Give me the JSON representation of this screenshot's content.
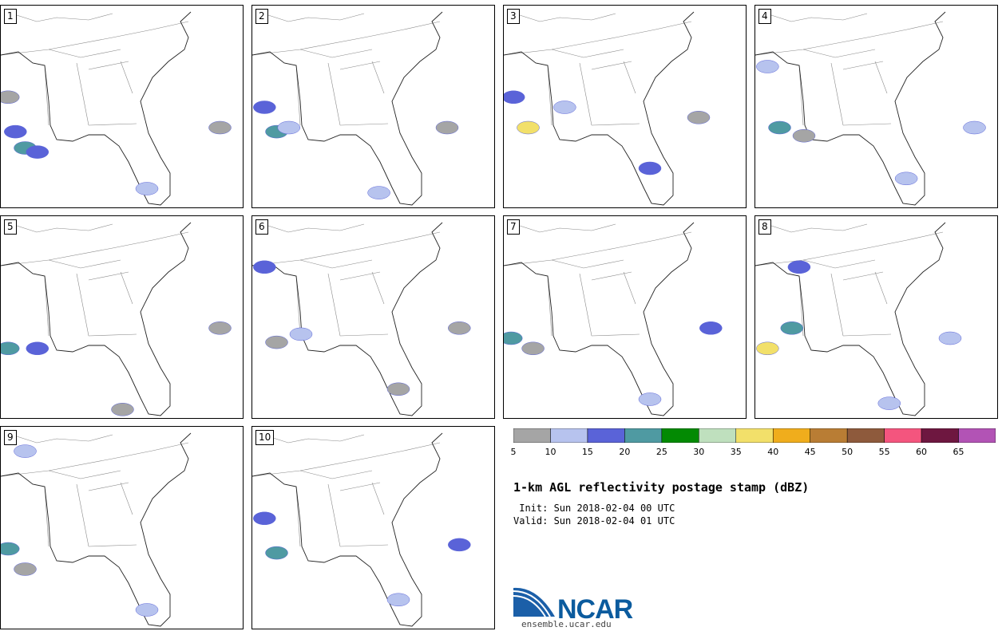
{
  "panels": [
    {
      "label": "1"
    },
    {
      "label": "2"
    },
    {
      "label": "3"
    },
    {
      "label": "4"
    },
    {
      "label": "5"
    },
    {
      "label": "6"
    },
    {
      "label": "7"
    },
    {
      "label": "8"
    },
    {
      "label": "9"
    },
    {
      "label": "10"
    }
  ],
  "colorbar": {
    "colors": [
      "#a5a5a5",
      "#b7c3ee",
      "#5a63d8",
      "#4f9aa2",
      "#038a03",
      "#bfe0be",
      "#f2e06a",
      "#f0ad1c",
      "#b97d34",
      "#8e5a3c",
      "#f4557e",
      "#6e1740",
      "#b253b5"
    ],
    "ticks": [
      "5",
      "10",
      "15",
      "20",
      "25",
      "30",
      "35",
      "40",
      "45",
      "50",
      "55",
      "60",
      "65"
    ]
  },
  "title": "1-km AGL reflectivity postage stamp (dBZ)",
  "init_line": " Init: Sun 2018-02-04 00 UTC",
  "valid_line": "Valid: Sun 2018-02-04 01 UTC",
  "logo": {
    "name": "NCAR",
    "url": "ensemble.ucar.edu"
  },
  "blobs": [
    [
      [
        0.03,
        0.45,
        "g"
      ],
      [
        0.06,
        0.62,
        "m"
      ],
      [
        0.1,
        0.7,
        "t"
      ],
      [
        0.15,
        0.72,
        "m"
      ],
      [
        0.6,
        0.9,
        "b"
      ],
      [
        0.9,
        0.6,
        "g"
      ]
    ],
    [
      [
        0.05,
        0.5,
        "m"
      ],
      [
        0.1,
        0.62,
        "t"
      ],
      [
        0.15,
        0.6,
        "b"
      ],
      [
        0.8,
        0.6,
        "g"
      ],
      [
        0.52,
        0.92,
        "b"
      ]
    ],
    [
      [
        0.04,
        0.45,
        "m"
      ],
      [
        0.1,
        0.6,
        "y"
      ],
      [
        0.25,
        0.5,
        "b"
      ],
      [
        0.6,
        0.8,
        "m"
      ],
      [
        0.8,
        0.55,
        "g"
      ]
    ],
    [
      [
        0.05,
        0.3,
        "b"
      ],
      [
        0.1,
        0.6,
        "t"
      ],
      [
        0.2,
        0.64,
        "g"
      ],
      [
        0.62,
        0.85,
        "b"
      ],
      [
        0.9,
        0.6,
        "b"
      ]
    ],
    [
      [
        0.03,
        0.65,
        "t"
      ],
      [
        0.15,
        0.65,
        "m"
      ],
      [
        0.9,
        0.55,
        "g"
      ],
      [
        0.5,
        0.95,
        "g"
      ]
    ],
    [
      [
        0.05,
        0.25,
        "m"
      ],
      [
        0.1,
        0.62,
        "g"
      ],
      [
        0.2,
        0.58,
        "b"
      ],
      [
        0.85,
        0.55,
        "g"
      ],
      [
        0.6,
        0.85,
        "g"
      ]
    ],
    [
      [
        0.03,
        0.6,
        "t"
      ],
      [
        0.12,
        0.65,
        "g"
      ],
      [
        0.85,
        0.55,
        "m"
      ],
      [
        0.6,
        0.9,
        "b"
      ]
    ],
    [
      [
        0.15,
        0.55,
        "t"
      ],
      [
        0.05,
        0.65,
        "y"
      ],
      [
        0.18,
        0.25,
        "m"
      ],
      [
        0.8,
        0.6,
        "b"
      ],
      [
        0.55,
        0.92,
        "b"
      ]
    ],
    [
      [
        0.03,
        0.6,
        "t"
      ],
      [
        0.1,
        0.7,
        "g"
      ],
      [
        0.1,
        0.12,
        "b"
      ],
      [
        0.6,
        0.9,
        "b"
      ]
    ],
    [
      [
        0.1,
        0.62,
        "t"
      ],
      [
        0.05,
        0.45,
        "m"
      ],
      [
        0.6,
        0.85,
        "b"
      ],
      [
        0.85,
        0.58,
        "m"
      ]
    ]
  ]
}
